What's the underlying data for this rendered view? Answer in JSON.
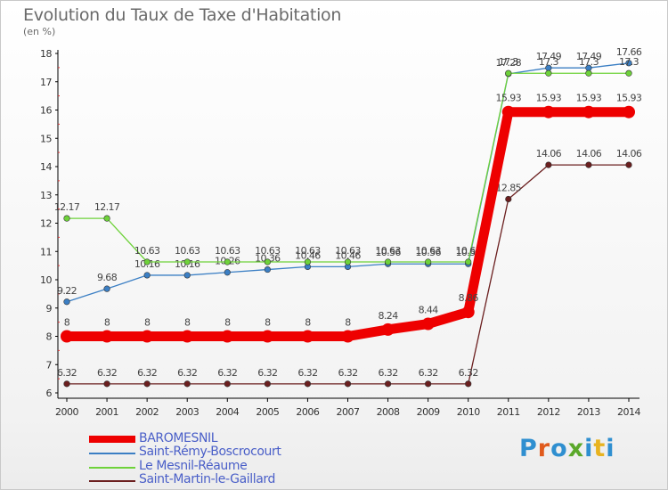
{
  "title": "Evolution du Taux de Taxe d'Habitation",
  "unit": "(en %)",
  "logo": {
    "text": "Proxiti",
    "colors": [
      "#2f8fd0",
      "#e05a1c",
      "#2f8fd0",
      "#5aa82a",
      "#2f8fd0",
      "#e8b320",
      "#2f8fd0"
    ]
  },
  "chart_data": {
    "type": "line",
    "title": "Evolution du Taux de Taxe d'Habitation",
    "ylabel": "(en %)",
    "xlabel": "",
    "x": [
      "2000",
      "2001",
      "2002",
      "2003",
      "2004",
      "2005",
      "2006",
      "2007",
      "2008",
      "2009",
      "2010",
      "2011",
      "2012",
      "2013",
      "2014"
    ],
    "ylim": [
      6,
      18
    ],
    "yticks": [
      "6",
      "7",
      "8",
      "9",
      "10",
      "11",
      "12",
      "13",
      "14",
      "15",
      "16",
      "17",
      "18"
    ],
    "grid": false,
    "legend_position": "bottom-left",
    "series": [
      {
        "name": "Saint-Martin-le-Gaillard",
        "color": "#6b1f1f",
        "values": [
          6.32,
          6.32,
          6.32,
          6.32,
          6.32,
          6.32,
          6.32,
          6.32,
          6.32,
          6.32,
          6.32,
          12.85,
          14.06,
          14.06,
          14.06
        ],
        "labels": [
          "6.32",
          "6.32",
          "6.32",
          "6.32",
          "6.32",
          "6.32",
          "6.32",
          "6.32",
          "6.32",
          "6.32",
          "6.32",
          "12.85",
          "14.06",
          "14.06",
          "14.06"
        ]
      },
      {
        "name": "Saint-Rémy-Boscrocourt",
        "color": "#3b7fc4",
        "values": [
          9.22,
          9.68,
          10.16,
          10.16,
          10.26,
          10.36,
          10.46,
          10.46,
          10.56,
          10.56,
          10.56,
          17.28,
          17.49,
          17.49,
          17.66
        ],
        "labels": [
          "9.22",
          "9.68",
          "10.16",
          "10.16",
          "10.26",
          "10.36",
          "10.46",
          "10.46",
          "10.56",
          "10.56",
          "10.56",
          "17.28",
          "17.49",
          "17.49",
          "17.66"
        ]
      },
      {
        "name": "Le Mesnil-Réaume",
        "color": "#6ed23a",
        "values": [
          12.17,
          12.17,
          10.63,
          10.63,
          10.63,
          10.63,
          10.63,
          10.63,
          10.63,
          10.63,
          10.63,
          17.3,
          17.3,
          17.3,
          17.3
        ],
        "labels": [
          "12.17",
          "12.17",
          "10.63",
          "10.63",
          "10.63",
          "10.63",
          "10.63",
          "10.63",
          "10.63",
          "10.63",
          "10.63",
          "17.3",
          "17.3",
          "17.3",
          "17.3"
        ]
      },
      {
        "name": "BAROMESNIL",
        "color": "#ee0000",
        "values": [
          8,
          8,
          8,
          8,
          8,
          8,
          8,
          8,
          8.24,
          8.44,
          8.86,
          15.93,
          15.93,
          15.93,
          15.93
        ],
        "labels": [
          "8",
          "8",
          "8",
          "8",
          "8",
          "8",
          "8",
          "8",
          "8.24",
          "8.44",
          "8.86",
          "15.93",
          "15.93",
          "15.93",
          "15.93"
        ]
      }
    ],
    "legend": [
      "BAROMESNIL",
      "Saint-Rémy-Boscrocourt",
      "Le Mesnil-Réaume",
      "Saint-Martin-le-Gaillard"
    ]
  }
}
